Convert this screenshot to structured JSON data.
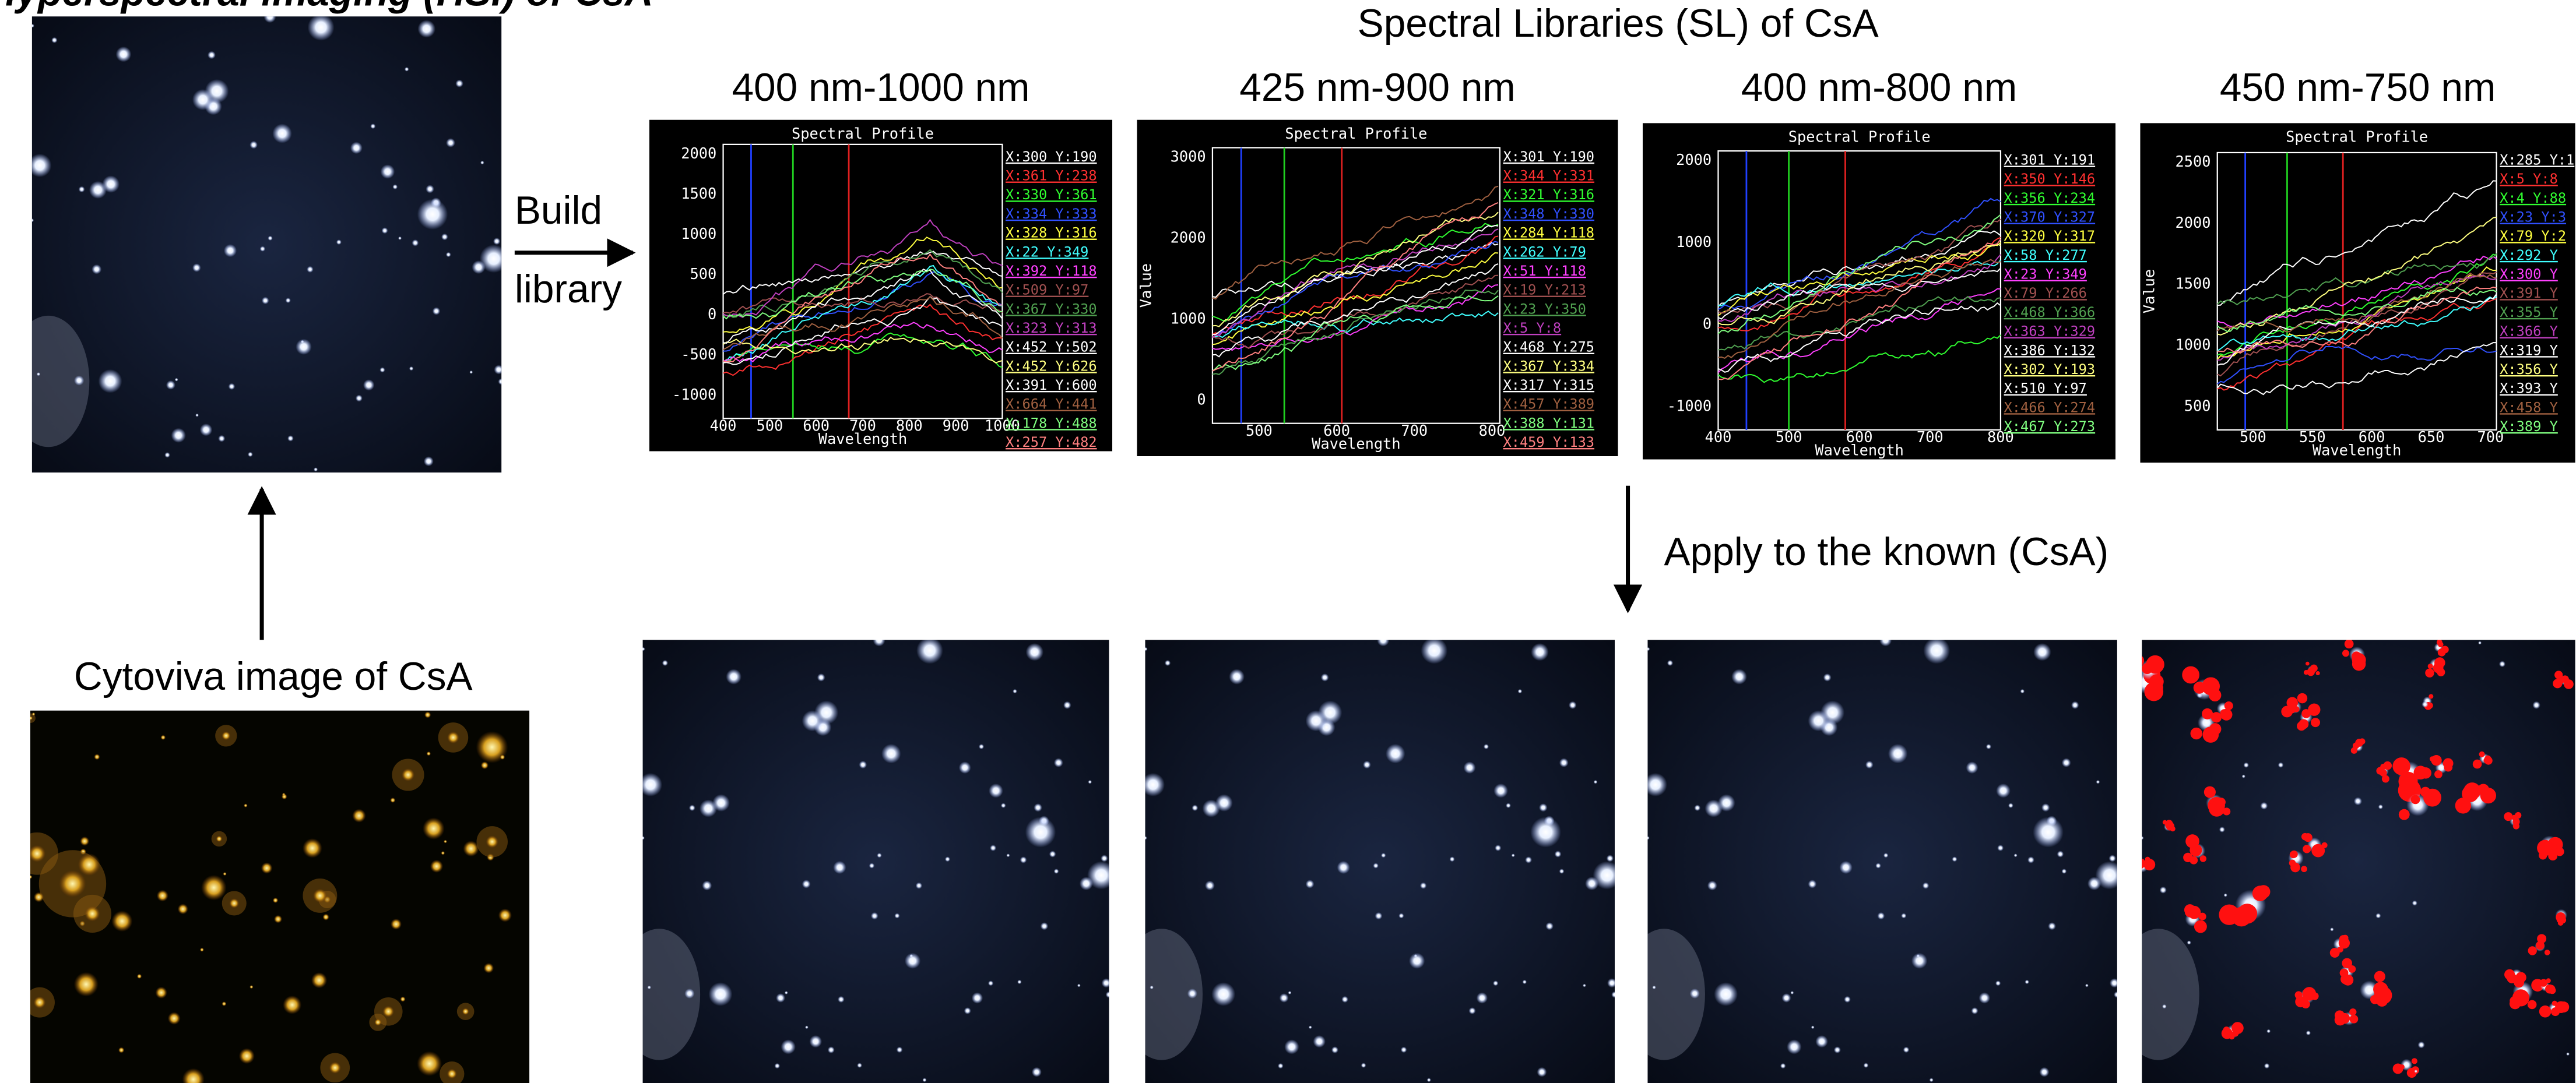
{
  "header": {
    "title": "Hyperspectral imaging (HSI) of CsA"
  },
  "left": {
    "build": "Build",
    "library": "library",
    "caption": "Cytoviva image of CsA"
  },
  "libraries": {
    "title": "Spectral Libraries (SL) of CsA",
    "panels": [
      {
        "range": "400 nm-1000 nm",
        "plot_title": "Spectral Profile",
        "x_label": "Wavelength",
        "yticks": [
          "2000",
          "1500",
          "1000",
          "500",
          "0",
          "-500",
          "-1000"
        ],
        "xticks": [
          "400",
          "500",
          "600",
          "700",
          "800",
          "900",
          "1000"
        ],
        "legend": [
          "X:300 Y:190",
          "X:361 Y:238",
          "X:330 Y:361",
          "X:334 Y:333",
          "X:328 Y:316",
          "X:22 Y:349",
          "X:392 Y:118",
          "X:509 Y:97",
          "X:367 Y:330",
          "X:323 Y:313",
          "X:452 Y:502",
          "X:452 Y:626",
          "X:391 Y:600",
          "X:664 Y:441",
          "X:178 Y:488",
          "X:257 Y:482"
        ]
      },
      {
        "range": "425 nm-900 nm",
        "plot_title": "Spectral Profile",
        "x_label": "Wavelength",
        "y_label": "Value",
        "yticks": [
          "3000",
          "2000",
          "1000",
          "0"
        ],
        "xticks": [
          "500",
          "600",
          "700",
          "800"
        ],
        "legend": [
          "X:301 Y:190",
          "X:344 Y:331",
          "X:321 Y:316",
          "X:348 Y:330",
          "X:284 Y:118",
          "X:262 Y:79",
          "X:51 Y:118",
          "X:19 Y:213",
          "X:23 Y:350",
          "X:5 Y:8",
          "X:468 Y:275",
          "X:367 Y:334",
          "X:317 Y:315",
          "X:457 Y:389",
          "X:388 Y:131",
          "X:459 Y:133"
        ]
      },
      {
        "range": "400 nm-800 nm",
        "plot_title": "Spectral Profile",
        "x_label": "Wavelength",
        "yticks": [
          "2000",
          "1000",
          "0",
          "-1000"
        ],
        "xticks": [
          "400",
          "500",
          "600",
          "700",
          "800"
        ],
        "legend": [
          "X:301 Y:191",
          "X:350 Y:146",
          "X:356 Y:234",
          "X:370 Y:327",
          "X:320 Y:317",
          "X:58 Y:277",
          "X:23 Y:349",
          "X:79 Y:266",
          "X:468 Y:366",
          "X:363 Y:329",
          "X:386 Y:132",
          "X:302 Y:193",
          "X:510 Y:97",
          "X:466 Y:274",
          "X:467 Y:273"
        ]
      },
      {
        "range": "450 nm-750 nm",
        "plot_title": "Spectral Profile",
        "x_label": "Wavelength",
        "y_label": "Value",
        "yticks": [
          "2500",
          "2000",
          "1500",
          "1000",
          "500"
        ],
        "xticks": [
          "500",
          "550",
          "600",
          "650",
          "700"
        ],
        "legend": [
          "X:285 Y:1",
          "X:5 Y:8",
          "X:4 Y:88",
          "X:23 Y:3",
          "X:79 Y:2",
          "X:292 Y",
          "X:300 Y",
          "X:391 Y",
          "X:355 Y",
          "X:366 Y",
          "X:319 Y",
          "X:356 Y",
          "X:393 Y",
          "X:458 Y",
          "X:389 Y"
        ]
      }
    ]
  },
  "apply": {
    "label": "Apply to the known (CsA)"
  }
}
